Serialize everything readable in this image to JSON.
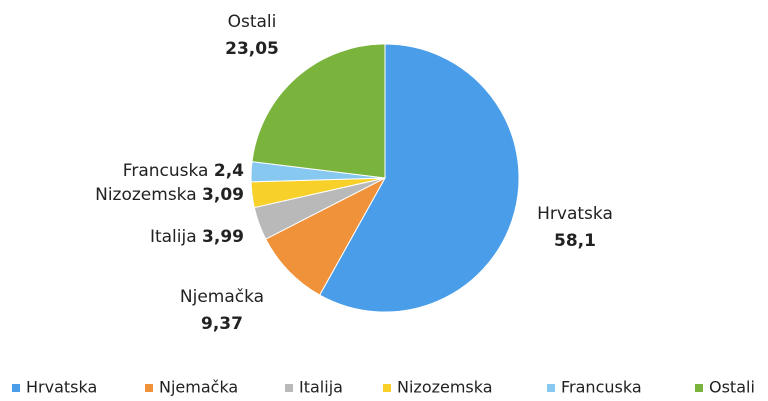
{
  "chart_data": {
    "type": "pie",
    "categories": [
      "Hrvatska",
      "Njemačka",
      "Italija",
      "Nizozemska",
      "Francuska",
      "Ostali"
    ],
    "values": [
      58.1,
      9.37,
      3.99,
      3.09,
      2.4,
      23.05
    ],
    "value_labels": [
      "58,1",
      "9,37",
      "3,99",
      "3,09",
      "2,4",
      "23,05"
    ],
    "colors": [
      "#4a9de8",
      "#f0923a",
      "#b9b9b9",
      "#f8d02a",
      "#86c8f0",
      "#7ab43c"
    ],
    "legend": "bottom"
  }
}
